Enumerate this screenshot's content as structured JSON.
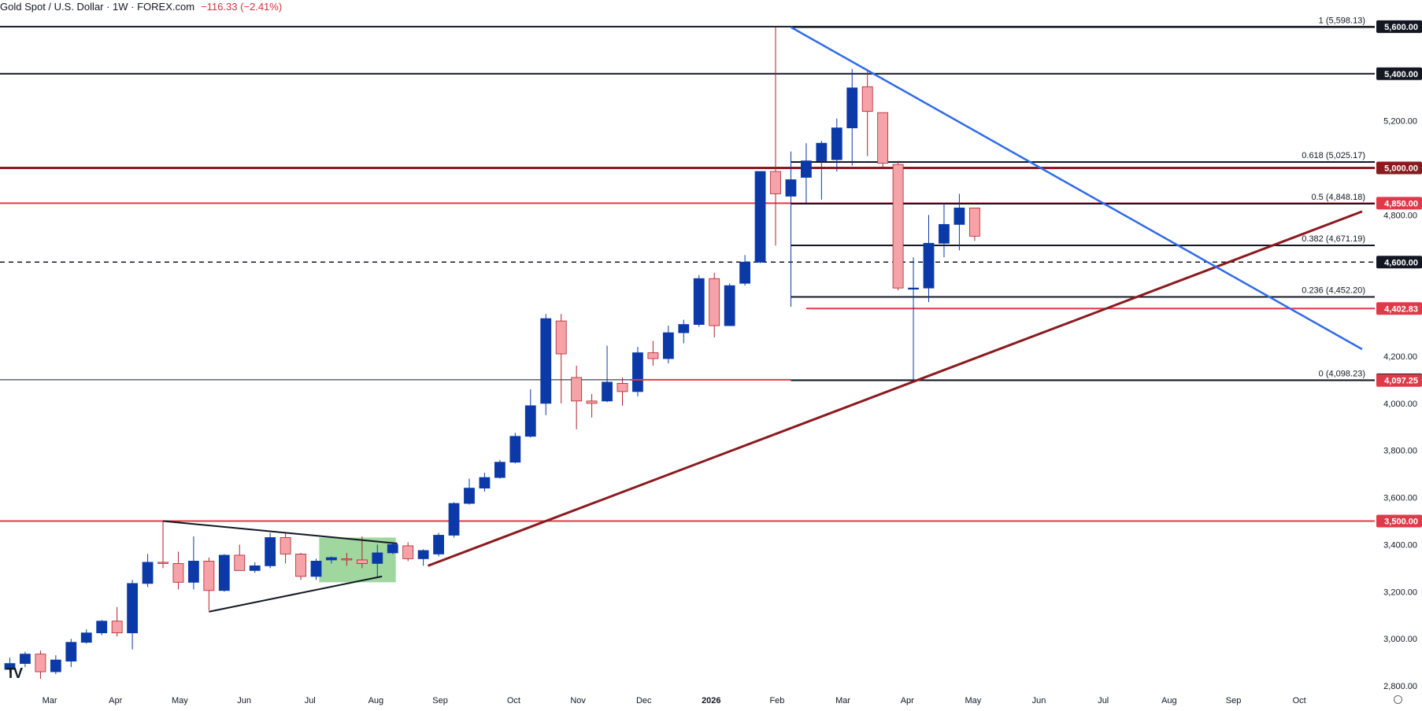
{
  "header": {
    "symbol": "Gold Spot / U.S. Dollar · 1W · FOREX.com",
    "change": "−116.33 (−2.41%)"
  },
  "logo_text": "TV",
  "colors": {
    "up": "#0b3aa8",
    "down": "#f5a3a8",
    "down_border": "#b1222c",
    "red_line": "#e03a4a",
    "dark_red_line": "#8b1a1f",
    "blue_trend": "#2f6be8",
    "green_box": "#7fc97f"
  },
  "chart_data": {
    "type": "candlestick",
    "title": "Gold Spot / U.S. Dollar · 1W · FOREX.com",
    "y_axis": {
      "ticks": [
        "5,200.00",
        "4,800.00",
        "4,200.00",
        "4,000.00",
        "3,800.00",
        "3,600.00",
        "3,400.00",
        "3,200.00",
        "3,000.00",
        "2,800.00"
      ],
      "tick_values": [
        5200,
        4800,
        4200,
        4000,
        3800,
        3600,
        3400,
        3200,
        3000,
        2800
      ],
      "range": [
        2720,
        5720
      ]
    },
    "x_axis": {
      "labels": [
        "Mar",
        "Apr",
        "May",
        "Jun",
        "Jul",
        "Aug",
        "Sep",
        "Oct",
        "Nov",
        "Dec",
        "2026",
        "Feb",
        "Mar",
        "Apr",
        "May",
        "Jun",
        "Jul",
        "Aug",
        "Sep",
        "Oct"
      ],
      "label_weeks": [
        2.6,
        6.9,
        11.1,
        15.3,
        19.6,
        23.9,
        28.1,
        32.9,
        37.1,
        41.4,
        45.8,
        50.1,
        54.4,
        58.6,
        62.9,
        67.2,
        71.4,
        75.7,
        79.9,
        84.2
      ]
    },
    "candles": [
      {
        "o": 2870,
        "h": 2920,
        "l": 2855,
        "c": 2895
      },
      {
        "o": 2895,
        "h": 2945,
        "l": 2880,
        "c": 2935
      },
      {
        "o": 2935,
        "h": 2950,
        "l": 2830,
        "c": 2860
      },
      {
        "o": 2860,
        "h": 2930,
        "l": 2850,
        "c": 2910
      },
      {
        "o": 2905,
        "h": 3000,
        "l": 2880,
        "c": 2985
      },
      {
        "o": 2985,
        "h": 3040,
        "l": 2980,
        "c": 3025
      },
      {
        "o": 3025,
        "h": 3080,
        "l": 3015,
        "c": 3075
      },
      {
        "o": 3075,
        "h": 3135,
        "l": 3010,
        "c": 3025
      },
      {
        "o": 3025,
        "h": 3250,
        "l": 2955,
        "c": 3235
      },
      {
        "o": 3235,
        "h": 3360,
        "l": 3220,
        "c": 3325
      },
      {
        "o": 3325,
        "h": 3500,
        "l": 3300,
        "c": 3320
      },
      {
        "o": 3320,
        "h": 3370,
        "l": 3210,
        "c": 3240
      },
      {
        "o": 3240,
        "h": 3435,
        "l": 3210,
        "c": 3330
      },
      {
        "o": 3330,
        "h": 3345,
        "l": 3120,
        "c": 3205
      },
      {
        "o": 3205,
        "h": 3360,
        "l": 3200,
        "c": 3355
      },
      {
        "o": 3355,
        "h": 3400,
        "l": 3290,
        "c": 3290
      },
      {
        "o": 3290,
        "h": 3325,
        "l": 3280,
        "c": 3310
      },
      {
        "o": 3310,
        "h": 3450,
        "l": 3300,
        "c": 3430
      },
      {
        "o": 3430,
        "h": 3450,
        "l": 3320,
        "c": 3360
      },
      {
        "o": 3360,
        "h": 3365,
        "l": 3250,
        "c": 3265
      },
      {
        "o": 3265,
        "h": 3340,
        "l": 3250,
        "c": 3330
      },
      {
        "o": 3335,
        "h": 3350,
        "l": 3320,
        "c": 3345
      },
      {
        "o": 3340,
        "h": 3365,
        "l": 3310,
        "c": 3335
      },
      {
        "o": 3335,
        "h": 3435,
        "l": 3300,
        "c": 3320
      },
      {
        "o": 3320,
        "h": 3400,
        "l": 3260,
        "c": 3365
      },
      {
        "o": 3365,
        "h": 3410,
        "l": 3360,
        "c": 3400
      },
      {
        "o": 3395,
        "h": 3410,
        "l": 3330,
        "c": 3340
      },
      {
        "o": 3340,
        "h": 3380,
        "l": 3310,
        "c": 3375
      },
      {
        "o": 3360,
        "h": 3450,
        "l": 3350,
        "c": 3440
      },
      {
        "o": 3440,
        "h": 3580,
        "l": 3430,
        "c": 3575
      },
      {
        "o": 3575,
        "h": 3680,
        "l": 3570,
        "c": 3640
      },
      {
        "o": 3640,
        "h": 3705,
        "l": 3625,
        "c": 3685
      },
      {
        "o": 3685,
        "h": 3760,
        "l": 3680,
        "c": 3750
      },
      {
        "o": 3750,
        "h": 3875,
        "l": 3745,
        "c": 3860
      },
      {
        "o": 3860,
        "h": 4060,
        "l": 3855,
        "c": 3990
      },
      {
        "o": 4000,
        "h": 4380,
        "l": 3950,
        "c": 4360
      },
      {
        "o": 4350,
        "h": 4380,
        "l": 4000,
        "c": 4210
      },
      {
        "o": 4110,
        "h": 4160,
        "l": 3890,
        "c": 4010
      },
      {
        "o": 4010,
        "h": 4040,
        "l": 3940,
        "c": 4000
      },
      {
        "o": 4010,
        "h": 4245,
        "l": 4005,
        "c": 4090
      },
      {
        "o": 4085,
        "h": 4110,
        "l": 3990,
        "c": 4050
      },
      {
        "o": 4050,
        "h": 4240,
        "l": 4030,
        "c": 4215
      },
      {
        "o": 4215,
        "h": 4265,
        "l": 4160,
        "c": 4190
      },
      {
        "o": 4190,
        "h": 4330,
        "l": 4170,
        "c": 4300
      },
      {
        "o": 4300,
        "h": 4355,
        "l": 4255,
        "c": 4335
      },
      {
        "o": 4335,
        "h": 4545,
        "l": 4325,
        "c": 4530
      },
      {
        "o": 4530,
        "h": 4555,
        "l": 4280,
        "c": 4330
      },
      {
        "o": 4330,
        "h": 4510,
        "l": 4330,
        "c": 4500
      },
      {
        "o": 4510,
        "h": 4630,
        "l": 4500,
        "c": 4600
      },
      {
        "o": 4600,
        "h": 4980,
        "l": 4595,
        "c": 4985
      },
      {
        "o": 4985,
        "h": 5598,
        "l": 4670,
        "c": 4890
      },
      {
        "o": 4880,
        "h": 5070,
        "l": 4410,
        "c": 4950
      },
      {
        "o": 4960,
        "h": 5105,
        "l": 4850,
        "c": 5030
      },
      {
        "o": 5030,
        "h": 5115,
        "l": 4865,
        "c": 5105
      },
      {
        "o": 5035,
        "h": 5210,
        "l": 4985,
        "c": 5170
      },
      {
        "o": 5170,
        "h": 5420,
        "l": 5010,
        "c": 5340
      },
      {
        "o": 5345,
        "h": 5420,
        "l": 5050,
        "c": 5240
      },
      {
        "o": 5235,
        "h": 5225,
        "l": 5000,
        "c": 5020
      },
      {
        "o": 5015,
        "h": 5030,
        "l": 4480,
        "c": 4490
      },
      {
        "o": 4490,
        "h": 4620,
        "l": 4100,
        "c": 4490
      },
      {
        "o": 4490,
        "h": 4800,
        "l": 4430,
        "c": 4680
      },
      {
        "o": 4680,
        "h": 4850,
        "l": 4620,
        "c": 4760
      },
      {
        "o": 4760,
        "h": 4890,
        "l": 4650,
        "c": 4830
      },
      {
        "o": 4830,
        "h": 4825,
        "l": 4690,
        "c": 4710
      }
    ],
    "horizontal_levels": [
      {
        "value": 5600,
        "label": "5,600.00",
        "color": "#131722",
        "line": "solid",
        "w": 2
      },
      {
        "value": 5400,
        "label": "5,400.00",
        "color": "#131722",
        "line": "solid",
        "w": 2
      },
      {
        "value": 5000,
        "label": "5,000.00",
        "color": "#8b1a1f",
        "line": "solid",
        "w": 3
      },
      {
        "value": 4850,
        "label": "4,850.00",
        "color": "#e03a4a",
        "line": "solid",
        "w": 2
      },
      {
        "value": 4600,
        "label": "4,600.00",
        "color": "#131722",
        "line": "dashed",
        "w": 1.5
      },
      {
        "value": 4402.83,
        "label": "4,402.83",
        "color": "#e03a4a",
        "line": "solid",
        "w": 2,
        "from_week": 52.0
      },
      {
        "value": 4100,
        "label": "4,100.00",
        "color": "#131722",
        "line": "solid",
        "w": 1
      },
      {
        "value": 4097.25,
        "label": "4,097.25",
        "color": "#e03a4a",
        "line": "none",
        "w": 0
      },
      {
        "value": 3500,
        "label": "3,500.00",
        "color": "#e03a4a",
        "line": "solid",
        "w": 2
      }
    ],
    "fibonacci": {
      "from_week": 51.0,
      "levels": [
        {
          "ratio": "1",
          "value": 5598.13,
          "text": "1 (5,598.13)"
        },
        {
          "ratio": "0.618",
          "value": 5025.17,
          "text": "0.618 (5,025.17)"
        },
        {
          "ratio": "0.5",
          "value": 4848.18,
          "text": "0.5 (4,848.18)"
        },
        {
          "ratio": "0.382",
          "value": 4671.19,
          "text": "0.382 (4,671.19)"
        },
        {
          "ratio": "0.236",
          "value": 4452.2,
          "text": "0.236 (4,452.20)"
        },
        {
          "ratio": "0",
          "value": 4098.23,
          "text": "0 (4,098.23)"
        }
      ]
    },
    "trendlines": [
      {
        "name": "support",
        "color": "#8b1a1f",
        "w": 3,
        "p1": {
          "week": 27.3,
          "value": 3310
        },
        "p2": {
          "week": 88.3,
          "value": 4815
        }
      },
      {
        "name": "resistance",
        "color": "#2f6be8",
        "w": 2.5,
        "p1": {
          "week": 51.0,
          "value": 5598
        },
        "p2": {
          "week": 88.3,
          "value": 4230
        }
      },
      {
        "name": "triangle-top",
        "color": "#131722",
        "w": 2,
        "p1": {
          "week": 10.0,
          "value": 3500
        },
        "p2": {
          "week": 25.3,
          "value": 3405
        }
      },
      {
        "name": "triangle-bottom",
        "color": "#131722",
        "w": 2,
        "p1": {
          "week": 13.0,
          "value": 3115
        },
        "p2": {
          "week": 24.3,
          "value": 3265
        }
      },
      {
        "name": "red-level-stub",
        "color": "#e03a4a",
        "w": 2,
        "p1": {
          "week": 40.5,
          "value": 4100
        },
        "p2": {
          "week": 51.0,
          "value": 4100
        }
      }
    ],
    "highlight_box": {
      "from_week": 20.2,
      "to_week": 25.2,
      "top": 3430,
      "bottom": 3240,
      "color": "#7fc97f"
    },
    "grid": false
  }
}
